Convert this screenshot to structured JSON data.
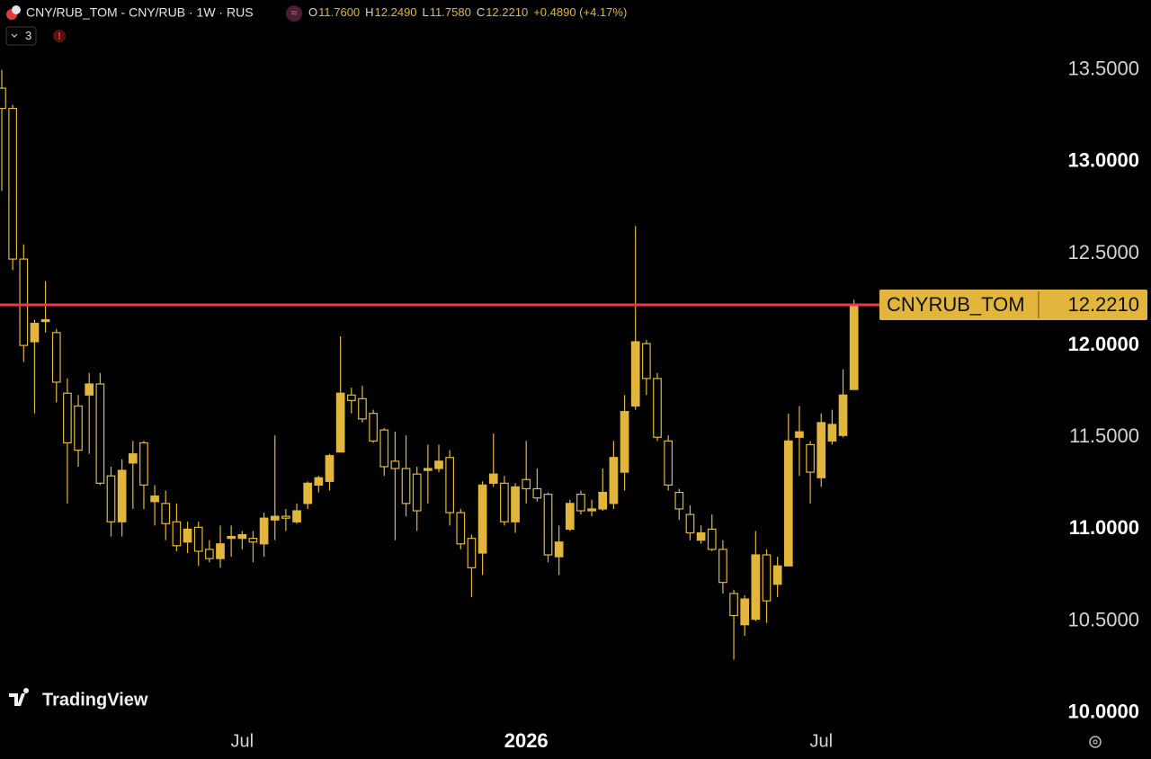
{
  "chart_data": {
    "type": "candlestick",
    "title": "CNY/RUB_TOM - CNY/RUB · 1W · RUS",
    "ohlc_header": {
      "o": "O",
      "open": "11.7600",
      "h": "H",
      "high": "12.2490",
      "l": "L",
      "low": "11.7580",
      "c": "C",
      "close": "12.2210",
      "change": "+0.4890 (+4.17%)"
    },
    "indicator_count": "3",
    "logo": "TradingView",
    "color": "#e2b63c",
    "categories": [
      null,
      null,
      null,
      null,
      null,
      null,
      null,
      null,
      null,
      null,
      null,
      null,
      null,
      null,
      null,
      null,
      null,
      null,
      null,
      null,
      null,
      null,
      "Jul",
      null,
      null,
      null,
      null,
      null,
      null,
      null,
      null,
      null,
      null,
      null,
      null,
      null,
      null,
      null,
      null,
      null,
      null,
      null,
      null,
      null,
      null,
      null,
      null,
      null,
      "2026",
      null,
      null,
      null,
      null,
      null,
      null,
      null,
      null,
      null,
      null,
      null,
      null,
      null,
      null,
      null,
      null,
      null,
      null,
      null,
      null,
      null,
      null,
      null,
      null,
      null,
      null,
      "Jul",
      null,
      null,
      null
    ],
    "series": {
      "open": [
        13.4,
        13.29,
        12.47,
        12.02,
        12.13,
        12.07,
        11.74,
        11.67,
        11.73,
        11.79,
        11.29,
        11.04,
        11.36,
        11.47,
        11.15,
        11.14,
        11.04,
        10.93,
        11.01,
        10.89,
        10.84,
        10.95,
        10.95,
        10.95,
        10.92,
        11.05,
        11.07,
        11.04,
        11.14,
        11.24,
        11.26,
        11.42,
        11.73,
        11.71,
        11.63,
        11.54,
        11.37,
        11.33,
        11.3,
        11.32,
        11.33,
        11.39,
        11.09,
        10.95,
        10.87,
        11.25,
        11.25,
        11.04,
        11.27,
        11.22,
        11.19,
        10.85,
        11.0,
        11.19,
        11.1,
        11.11,
        11.14,
        11.31,
        11.67,
        12.01,
        11.82,
        11.48,
        11.2,
        11.08,
        10.94,
        11.0,
        10.89,
        10.65,
        10.48,
        10.51,
        10.86,
        10.7,
        10.8,
        11.5,
        11.46,
        11.28,
        11.48,
        11.51,
        11.76
      ],
      "high": [
        13.5,
        13.31,
        12.55,
        12.14,
        12.35,
        12.09,
        11.82,
        11.73,
        11.85,
        11.85,
        11.34,
        11.38,
        11.48,
        11.48,
        11.24,
        11.21,
        11.14,
        11.04,
        11.04,
        10.94,
        11.02,
        11.02,
        10.99,
        10.99,
        11.09,
        11.51,
        11.11,
        11.14,
        11.26,
        11.29,
        11.41,
        12.05,
        11.77,
        11.78,
        11.65,
        11.55,
        11.53,
        11.51,
        11.34,
        11.46,
        11.46,
        11.43,
        11.11,
        10.97,
        11.26,
        11.52,
        11.29,
        11.25,
        11.48,
        11.33,
        11.2,
        11.02,
        11.16,
        11.21,
        11.16,
        11.33,
        11.48,
        11.73,
        12.65,
        12.03,
        11.85,
        11.51,
        11.22,
        11.13,
        11.02,
        11.08,
        10.94,
        10.67,
        10.64,
        10.99,
        10.89,
        10.85,
        11.63,
        11.67,
        11.48,
        11.63,
        11.65,
        11.87,
        12.249
      ],
      "low": [
        12.84,
        12.41,
        11.91,
        11.63,
        12.07,
        11.69,
        11.14,
        11.34,
        11.41,
        11.24,
        10.96,
        10.96,
        11.11,
        11.11,
        11.02,
        10.94,
        10.88,
        10.87,
        10.8,
        10.82,
        10.79,
        10.85,
        10.89,
        10.82,
        10.85,
        10.94,
        10.99,
        11.03,
        11.11,
        11.2,
        11.21,
        11.42,
        11.63,
        11.58,
        11.47,
        11.29,
        10.94,
        11.07,
        10.99,
        11.14,
        11.31,
        11.02,
        10.89,
        10.63,
        10.75,
        11.23,
        11.02,
        10.98,
        11.14,
        11.15,
        10.82,
        10.75,
        10.99,
        11.08,
        11.07,
        11.1,
        11.11,
        11.21,
        11.65,
        11.73,
        11.48,
        11.21,
        11.05,
        10.94,
        10.92,
        10.88,
        10.65,
        10.29,
        10.42,
        10.5,
        10.49,
        10.63,
        10.8,
        11.29,
        11.14,
        11.23,
        11.46,
        11.5,
        11.758
      ],
      "close": [
        13.29,
        12.47,
        12.0,
        12.12,
        12.14,
        11.8,
        11.47,
        11.43,
        11.79,
        11.25,
        11.04,
        11.32,
        11.41,
        11.24,
        11.18,
        11.03,
        10.91,
        11.0,
        10.88,
        10.84,
        10.92,
        10.96,
        10.97,
        10.93,
        11.06,
        11.07,
        11.06,
        11.1,
        11.25,
        11.28,
        11.4,
        11.74,
        11.7,
        11.6,
        11.48,
        11.34,
        11.33,
        11.14,
        11.1,
        11.33,
        11.37,
        11.09,
        10.92,
        10.79,
        11.24,
        11.3,
        11.04,
        11.23,
        11.22,
        11.17,
        10.86,
        10.93,
        11.14,
        11.1,
        11.11,
        11.2,
        11.39,
        11.64,
        12.02,
        11.82,
        11.5,
        11.24,
        11.11,
        10.98,
        10.98,
        10.89,
        10.71,
        10.53,
        10.62,
        10.86,
        10.61,
        10.8,
        11.48,
        11.53,
        11.31,
        11.58,
        11.57,
        11.73,
        12.221
      ]
    },
    "price_line": {
      "name": "CNYRUB_TOM",
      "label": "12.2210",
      "color": "#f23645"
    },
    "ylim": [
      9.94,
      13.88
    ],
    "yticks": [
      {
        "value": 10.0,
        "label": "10.0000"
      },
      {
        "value": 10.5,
        "label": "10.5000"
      },
      {
        "value": 11.0,
        "label": "11.0000"
      },
      {
        "value": 11.5,
        "label": "11.5000"
      },
      {
        "value": 12.0,
        "label": "12.0000"
      },
      {
        "value": 12.5,
        "label": "12.5000"
      },
      {
        "value": 13.0,
        "label": "13.0000"
      },
      {
        "value": 13.5,
        "label": "13.5000"
      }
    ]
  }
}
